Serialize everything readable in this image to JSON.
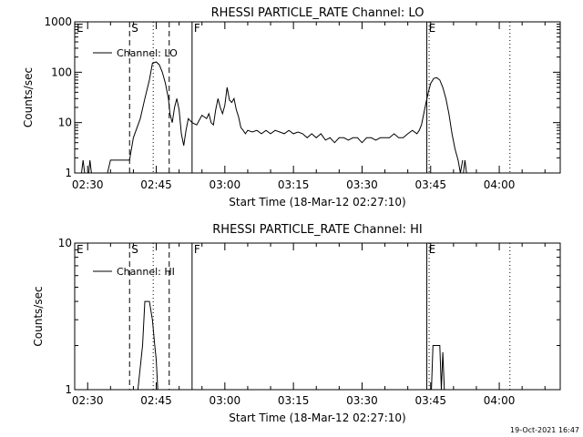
{
  "footer": {
    "timestamp": "19-Oct-2021 16:47"
  },
  "chart_data": [
    {
      "type": "line",
      "title": "RHESSI PARTICLE_RATE Channel: LO",
      "xlabel": "Start Time (18-Mar-12 02:27:10)",
      "ylabel": "Counts/sec",
      "yscale": "log",
      "xlim": [
        "02:27:10",
        "04:13:20"
      ],
      "ylim": [
        1,
        1000
      ],
      "xticks": [
        "02:30",
        "02:45",
        "03:00",
        "03:15",
        "03:30",
        "03:45",
        "04:00"
      ],
      "yticks": [
        "1",
        "10",
        "100",
        "1000"
      ],
      "legend": {
        "position": "top-left",
        "entries": [
          "Channel: LO"
        ]
      },
      "markers": [
        {
          "label": "E",
          "time": "02:27:10",
          "style": "solid"
        },
        {
          "label": "S",
          "time": "02:39:10",
          "style": "dashed"
        },
        {
          "label": "",
          "time": "02:44:20",
          "style": "dotted"
        },
        {
          "label": "",
          "time": "02:47:50",
          "style": "dashed"
        },
        {
          "label": "F",
          "time": "02:52:50",
          "style": "solid"
        },
        {
          "label": "E",
          "time": "03:44:10",
          "style": "solid"
        },
        {
          "label": "",
          "time": "03:44:40",
          "style": "dotted"
        },
        {
          "label": "",
          "time": "04:02:20",
          "style": "dotted"
        }
      ],
      "series": [
        {
          "name": "Channel: LO",
          "segments": [
            {
              "x": [
                "02:28:00",
                "02:28:40",
                "02:29:00",
                "02:29:20",
                "02:29:50",
                "02:30:15",
                "02:30:30",
                "02:30:50",
                "02:31:20",
                "02:32:00"
              ],
              "y": [
                1,
                1,
                1.8,
                1,
                1,
                1,
                1.8,
                1,
                1,
                1
              ]
            },
            {
              "x": [
                "02:34:20",
                "02:35:00",
                "02:35:10",
                "02:39:10",
                "02:40:00",
                "02:41:30",
                "02:42:30",
                "02:43:30",
                "02:44:10",
                "02:45:00",
                "02:45:40",
                "02:46:20",
                "02:47:00",
                "02:47:40",
                "02:48:00",
                "02:48:30",
                "02:49:00",
                "02:49:30",
                "02:50:00",
                "02:50:30",
                "02:51:00",
                "02:51:30",
                "02:52:00",
                "02:52:50",
                "02:53:50",
                "02:55:00",
                "02:56:00",
                "02:56:30",
                "02:57:00",
                "02:57:30",
                "02:58:00",
                "02:58:30",
                "02:59:00",
                "02:59:30",
                "03:00:00",
                "03:00:30",
                "03:01:00",
                "03:01:30",
                "03:02:00",
                "03:02:30",
                "03:03:00",
                "03:03:30",
                "03:04:00",
                "03:04:30",
                "03:05:00",
                "03:06:00",
                "03:07:00",
                "03:08:00",
                "03:09:00",
                "03:10:00",
                "03:11:00",
                "03:12:00",
                "03:13:00",
                "03:14:00",
                "03:15:00",
                "03:16:00",
                "03:17:00",
                "03:18:00",
                "03:19:00",
                "03:20:00",
                "03:21:00",
                "03:22:00",
                "03:23:00",
                "03:24:00",
                "03:25:00",
                "03:26:00",
                "03:27:00",
                "03:28:00",
                "03:29:00",
                "03:30:00",
                "03:31:00",
                "03:32:00",
                "03:33:00",
                "03:34:00",
                "03:35:00",
                "03:36:00",
                "03:37:00",
                "03:38:00",
                "03:39:00",
                "03:40:00",
                "03:41:00",
                "03:42:00",
                "03:42:30",
                "03:43:00",
                "03:43:30",
                "03:44:00",
                "03:44:30",
                "03:45:00",
                "03:45:40",
                "03:46:20",
                "03:47:00",
                "03:47:40",
                "03:48:20",
                "03:49:00",
                "03:49:40",
                "03:50:20",
                "03:51:00",
                "03:51:30",
                "03:52:00"
              ],
              "y": [
                1,
                1.8,
                1.8,
                1.8,
                5,
                12,
                30,
                70,
                150,
                160,
                140,
                100,
                60,
                30,
                15,
                10,
                20,
                30,
                18,
                6,
                3.5,
                7,
                12,
                10,
                9,
                14,
                12,
                15,
                10,
                9,
                18,
                30,
                20,
                15,
                22,
                50,
                28,
                25,
                30,
                18,
                13,
                8,
                7,
                6,
                7,
                6.5,
                7,
                6,
                7,
                6,
                7,
                6.5,
                6,
                7,
                6,
                6.5,
                6,
                5,
                6,
                5,
                6,
                4.5,
                5,
                4,
                5,
                5,
                4.5,
                5,
                5,
                4,
                5,
                5,
                4.5,
                5,
                5,
                5,
                6,
                5,
                5,
                6,
                7,
                6,
                7,
                9,
                15,
                25,
                40,
                60,
                75,
                78,
                70,
                50,
                30,
                15,
                6,
                3,
                1.8,
                1,
                1.8
              ]
            },
            {
              "x": [
                "03:52:10",
                "03:52:30",
                "03:52:50"
              ],
              "y": [
                1,
                1.8,
                1
              ]
            }
          ]
        }
      ]
    },
    {
      "type": "line",
      "title": "RHESSI PARTICLE_RATE Channel: HI",
      "xlabel": "Start Time (18-Mar-12 02:27:10)",
      "ylabel": "Counts/sec",
      "yscale": "log",
      "xlim": [
        "02:27:10",
        "04:13:20"
      ],
      "ylim": [
        1,
        10
      ],
      "xticks": [
        "02:30",
        "02:45",
        "03:00",
        "03:15",
        "03:30",
        "03:45",
        "04:00"
      ],
      "yticks": [
        "1",
        "10"
      ],
      "legend": {
        "position": "top-left",
        "entries": [
          "Channel: HI"
        ]
      },
      "markers": [
        {
          "label": "E",
          "time": "02:27:10",
          "style": "solid"
        },
        {
          "label": "S",
          "time": "02:39:10",
          "style": "dashed"
        },
        {
          "label": "",
          "time": "02:44:20",
          "style": "dotted"
        },
        {
          "label": "",
          "time": "02:47:50",
          "style": "dashed"
        },
        {
          "label": "F",
          "time": "02:52:50",
          "style": "solid"
        },
        {
          "label": "E",
          "time": "03:44:10",
          "style": "solid"
        },
        {
          "label": "",
          "time": "03:44:40",
          "style": "dotted"
        },
        {
          "label": "",
          "time": "04:02:20",
          "style": "dotted"
        }
      ],
      "series": [
        {
          "name": "Channel: HI",
          "segments": [
            {
              "x": [
                "02:41:00",
                "02:42:00",
                "02:42:30",
                "02:43:30",
                "02:44:10",
                "02:44:40",
                "02:45:00",
                "02:45:20"
              ],
              "y": [
                1,
                2,
                4,
                4,
                3,
                2,
                1.6,
                1
              ]
            },
            {
              "x": [
                "03:45:10",
                "03:45:30",
                "03:46:00",
                "03:47:00",
                "03:47:20",
                "03:47:40",
                "03:48:00"
              ],
              "y": [
                1,
                2,
                2,
                2,
                1,
                1.8,
                1
              ]
            }
          ]
        }
      ]
    }
  ]
}
